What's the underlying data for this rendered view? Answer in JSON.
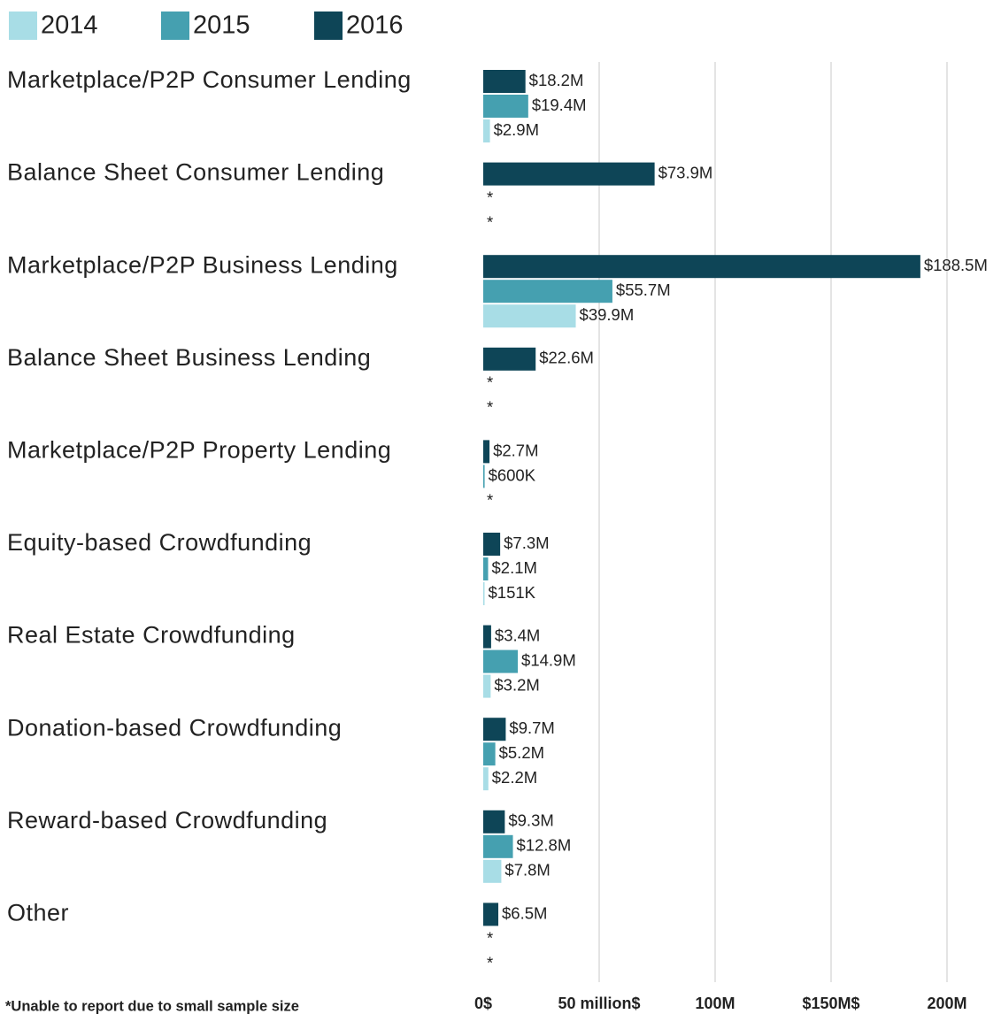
{
  "chart_data": {
    "type": "bar",
    "orientation": "horizontal",
    "categories": [
      "Marketplace/P2P Consumer Lending",
      "Balance Sheet Consumer Lending",
      "Marketplace/P2P Business Lending",
      "Balance Sheet Business Lending",
      "Marketplace/P2P Property Lending",
      "Equity-based Crowdfunding",
      "Real Estate Crowdfunding",
      "Donation-based Crowdfunding",
      "Reward-based Crowdfunding",
      "Other"
    ],
    "series": [
      {
        "name": "2014",
        "color": "#a8dde6",
        "values": [
          2.9,
          null,
          39.9,
          null,
          null,
          0.151,
          3.2,
          2.2,
          7.8,
          null
        ],
        "value_labels": [
          "$2.9M",
          "*",
          "$39.9M",
          "*",
          "*",
          "$151K",
          "$3.2M",
          "$2.2M",
          "$7.8M",
          "*"
        ]
      },
      {
        "name": "2015",
        "color": "#45a0b0",
        "values": [
          19.4,
          null,
          55.7,
          null,
          0.6,
          2.1,
          14.9,
          5.2,
          12.8,
          null
        ],
        "value_labels": [
          "$19.4M",
          "*",
          "$55.7M",
          "*",
          "$600K",
          "$2.1M",
          "$14.9M",
          "$5.2M",
          "$12.8M",
          "*"
        ]
      },
      {
        "name": "2016",
        "color": "#0e4557",
        "values": [
          18.2,
          73.9,
          188.5,
          22.6,
          2.7,
          7.3,
          3.4,
          9.7,
          9.3,
          6.5
        ],
        "value_labels": [
          "$18.2M",
          "$73.9M",
          "$188.5M",
          "$22.6M",
          "$2.7M",
          "$7.3M",
          "$3.4M",
          "$9.7M",
          "$9.3M",
          "$6.5M"
        ]
      }
    ],
    "xlim": [
      0,
      200
    ],
    "xticks": [
      {
        "value": 0,
        "label": "0$"
      },
      {
        "value": 50,
        "label": "50 million$"
      },
      {
        "value": 100,
        "label": "100M"
      },
      {
        "value": 150,
        "label": "$150M$"
      },
      {
        "value": 200,
        "label": "200M"
      }
    ],
    "grid": true,
    "footnote": "*Unable to report due to small sample size"
  }
}
